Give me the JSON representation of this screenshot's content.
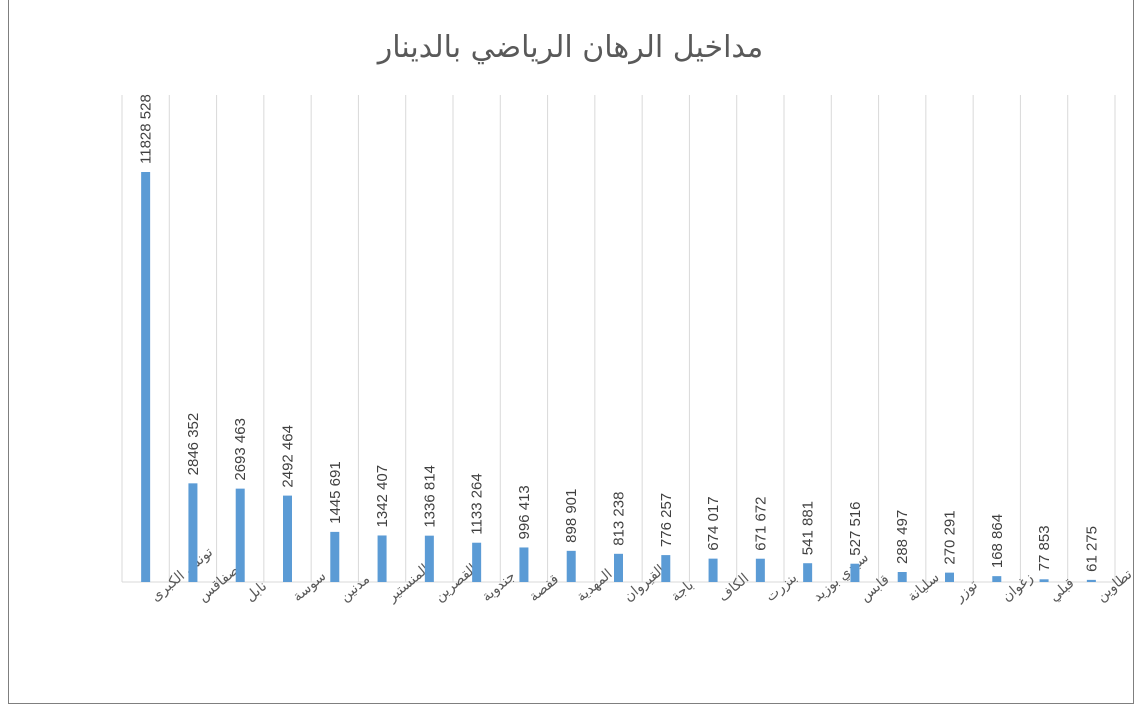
{
  "chart_data": {
    "type": "bar",
    "title": "مداخيل الرهان الرياضي بالدينار",
    "categories": [
      "تونس الكبرى",
      "صفاقس",
      "نابل",
      "سوسة",
      "مدنين",
      "المنستير",
      "القصرين",
      "جندوبة",
      "قفصة",
      "المهدية",
      "القيروان",
      "باجة",
      "الكاف",
      "بنزرت",
      "سيدي بوزيد",
      "قابس",
      "سليانة",
      "توزر",
      "زغوان",
      "قبلي",
      "تطاوين"
    ],
    "values": [
      11828528,
      2846352,
      2693463,
      2492464,
      1445691,
      1342407,
      1336814,
      1133264,
      996413,
      898901,
      813238,
      776257,
      674017,
      671672,
      541881,
      527516,
      288497,
      270291,
      168864,
      77853,
      61275
    ],
    "data_labels": [
      "11828 528",
      "2846 352",
      "2693 463",
      "2492 464",
      "1445 691",
      "1342 407",
      "1336 814",
      "1133 264",
      "996 413",
      "898 901",
      "813 238",
      "776 257",
      "674 017",
      "671 672",
      "541 881",
      "527 516",
      "288 497",
      "270 291",
      "168 864",
      "77 853",
      "61 275"
    ],
    "xlabel": "",
    "ylabel": "",
    "grid": "vertical",
    "legend": "none",
    "bar_color": "#5b9bd5"
  }
}
